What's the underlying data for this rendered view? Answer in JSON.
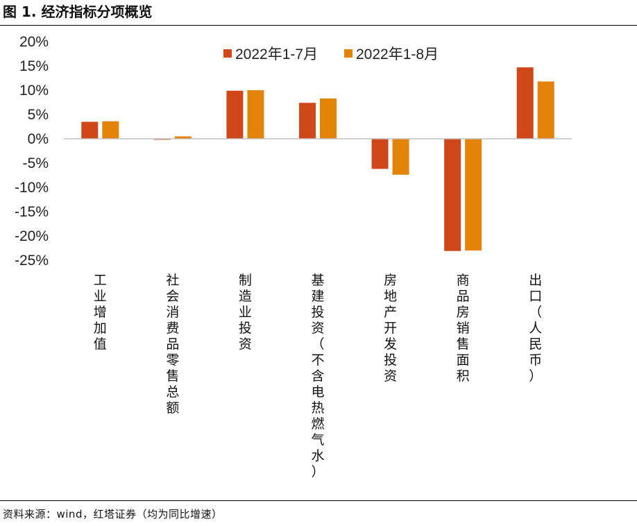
{
  "figure": {
    "title": "图 1. 经济指标分项概览",
    "source": "资料来源：wind，红塔证券（均为同比增速）"
  },
  "colors": {
    "series1": "#d04819",
    "series2": "#e38307",
    "axis": "#bfbfbf",
    "text": "#222222"
  },
  "chart_data": {
    "type": "bar",
    "title": "",
    "xlabel": "",
    "ylabel": "",
    "ylim": [
      -25,
      20
    ],
    "yticks": [
      20,
      15,
      10,
      5,
      0,
      -5,
      -10,
      -15,
      -20,
      -25
    ],
    "ytick_labels": [
      "20%",
      "15%",
      "10%",
      "5%",
      "0%",
      "-5%",
      "-10%",
      "-15%",
      "-20%",
      "-25%"
    ],
    "grid": false,
    "legend_position": "top",
    "categories": [
      "工业增加值",
      "社会消费品零售总额",
      "制造业投资",
      "基建投资（不含电热燃气水）",
      "房地产开发投资",
      "商品房销售面积",
      "出口（人民币）"
    ],
    "series": [
      {
        "name": "2022年1-7月",
        "values": [
          3.5,
          -0.2,
          9.9,
          7.4,
          -6.2,
          -23.1,
          14.7
        ]
      },
      {
        "name": "2022年1-8月",
        "values": [
          3.6,
          0.5,
          10.0,
          8.3,
          -7.4,
          -23.0,
          11.8
        ]
      }
    ]
  }
}
